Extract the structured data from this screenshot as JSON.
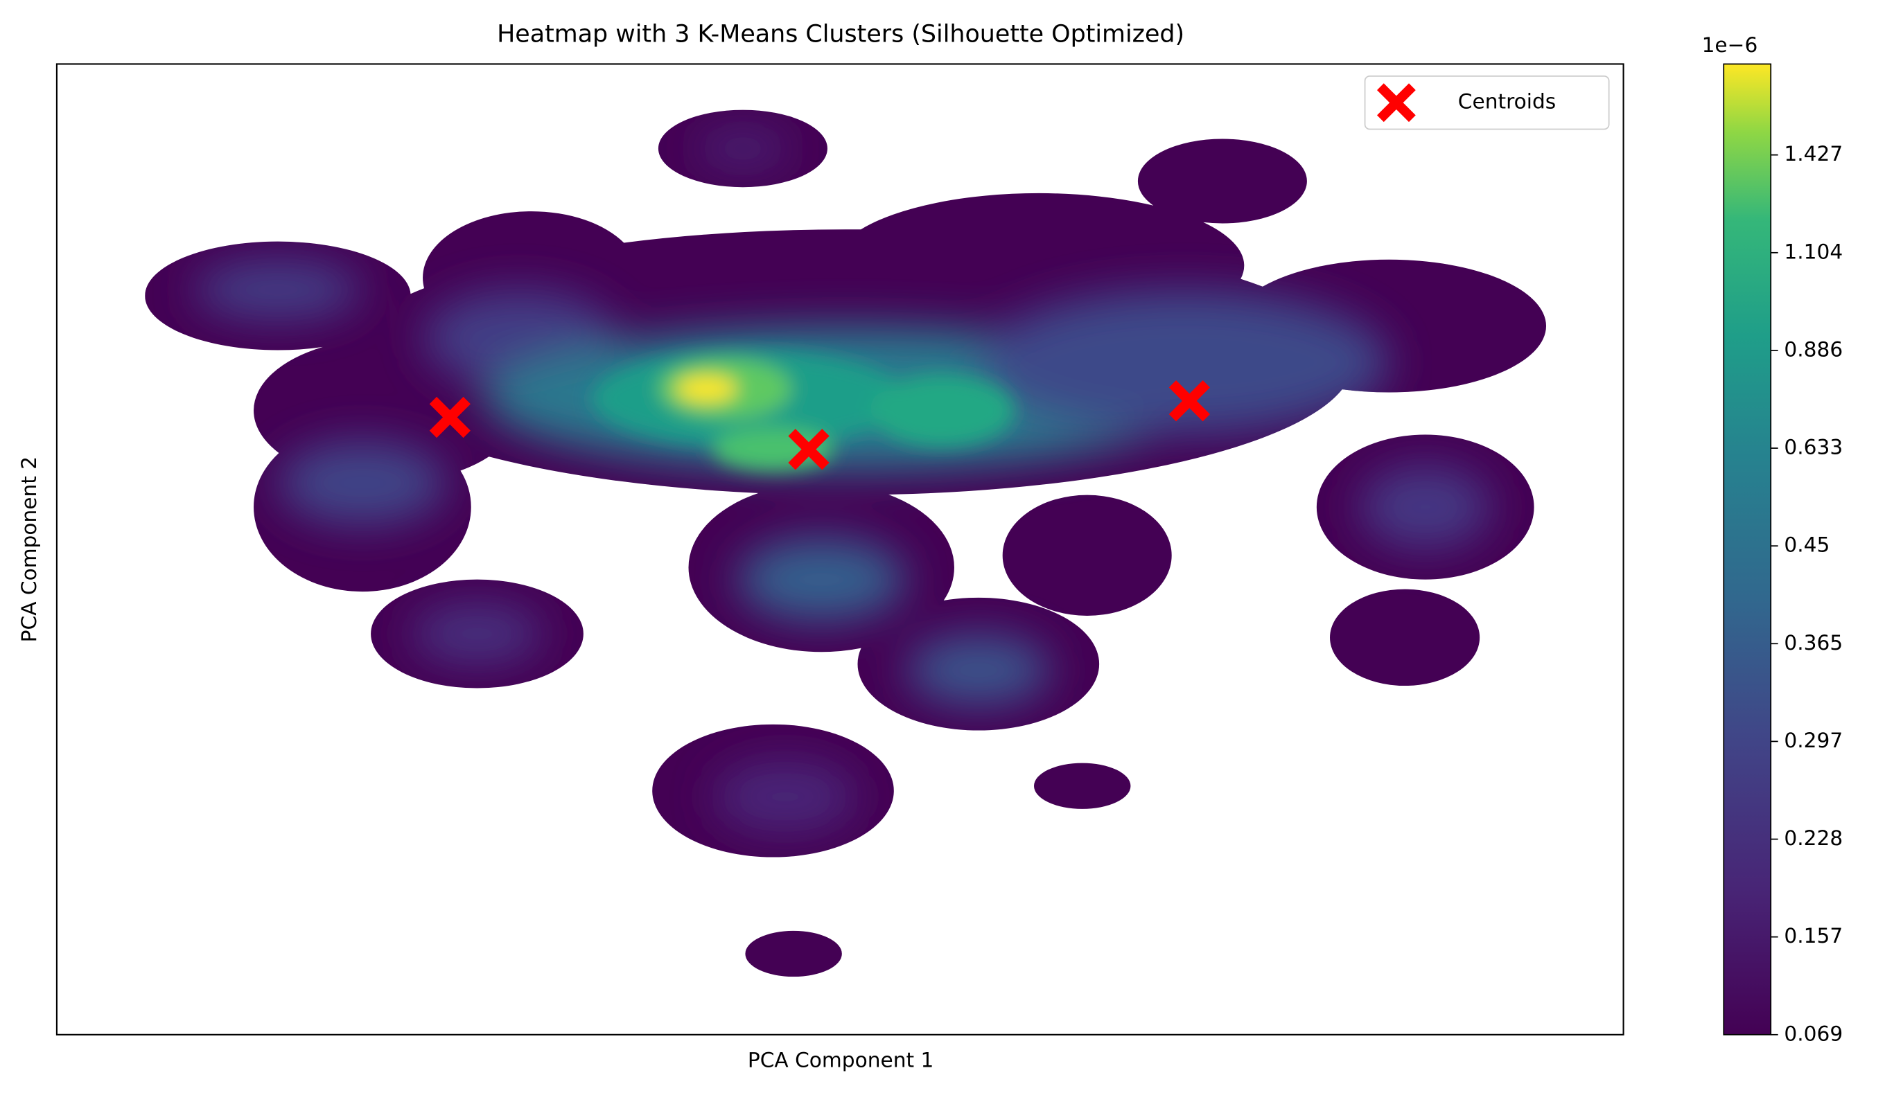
{
  "chart_data": {
    "type": "kde-heatmap",
    "title": "Heatmap with 3 K-Means Clusters (Silhouette Optimized)",
    "x_label": "PCA Component 1",
    "y_label": "PCA Component 2",
    "xlim": [
      0,
      1
    ],
    "ylim": [
      0,
      1
    ],
    "series": [
      {
        "name": "Centroids",
        "color": "#ff0000",
        "x": [
          0.251,
          0.48,
          0.723
        ],
        "values": [
          0.636,
          0.603,
          0.653
        ]
      }
    ],
    "legend": "upper right",
    "colorbar": {
      "offset_label": "1e−6",
      "ticks": [
        0.069,
        0.157,
        0.228,
        0.297,
        0.365,
        0.45,
        0.633,
        0.886,
        1.104,
        1.427
      ]
    }
  }
}
